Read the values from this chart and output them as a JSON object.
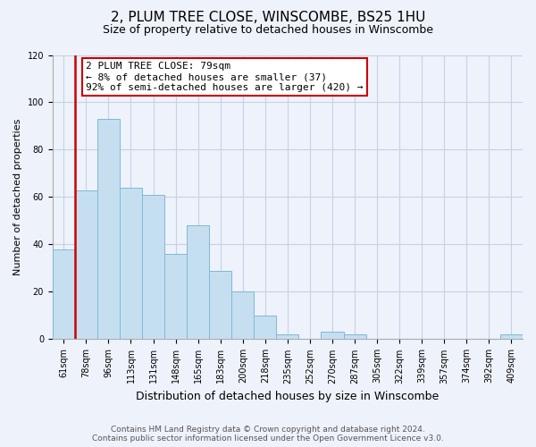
{
  "title": "2, PLUM TREE CLOSE, WINSCOMBE, BS25 1HU",
  "subtitle": "Size of property relative to detached houses in Winscombe",
  "xlabel": "Distribution of detached houses by size in Winscombe",
  "ylabel": "Number of detached properties",
  "bin_labels": [
    "61sqm",
    "78sqm",
    "96sqm",
    "113sqm",
    "131sqm",
    "148sqm",
    "165sqm",
    "183sqm",
    "200sqm",
    "218sqm",
    "235sqm",
    "252sqm",
    "270sqm",
    "287sqm",
    "305sqm",
    "322sqm",
    "339sqm",
    "357sqm",
    "374sqm",
    "392sqm",
    "409sqm"
  ],
  "bar_heights": [
    38,
    63,
    93,
    64,
    61,
    36,
    48,
    29,
    20,
    10,
    2,
    0,
    3,
    2,
    0,
    0,
    0,
    0,
    0,
    0,
    2
  ],
  "bar_color": "#c5dff0",
  "bar_edge_color": "#7fb8d8",
  "vline_x_index": 1,
  "vline_color": "#cc0000",
  "annotation_line1": "2 PLUM TREE CLOSE: 79sqm",
  "annotation_line2": "← 8% of detached houses are smaller (37)",
  "annotation_line3": "92% of semi-detached houses are larger (420) →",
  "annotation_box_edge_color": "#cc0000",
  "annotation_box_face_color": "#ffffff",
  "ylim": [
    0,
    120
  ],
  "yticks": [
    0,
    20,
    40,
    60,
    80,
    100,
    120
  ],
  "footer_line1": "Contains HM Land Registry data © Crown copyright and database right 2024.",
  "footer_line2": "Contains public sector information licensed under the Open Government Licence v3.0.",
  "bg_color": "#eef2fb",
  "grid_color": "#c8d0e4",
  "title_fontsize": 11,
  "subtitle_fontsize": 9,
  "ylabel_fontsize": 8,
  "xlabel_fontsize": 9,
  "tick_fontsize": 7,
  "footer_fontsize": 6.5,
  "annotation_fontsize": 8
}
